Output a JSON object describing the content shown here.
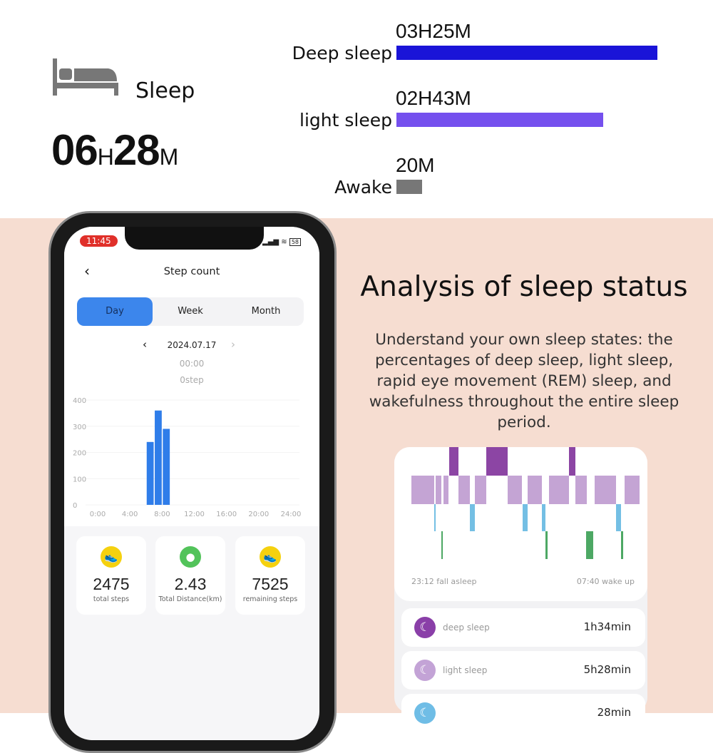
{
  "summary": {
    "icon": "bed-icon",
    "title": "Sleep",
    "hours": "06",
    "h_unit": "H",
    "minutes": "28",
    "m_unit": "M"
  },
  "stages": [
    {
      "label": "Deep sleep",
      "duration": "03H25M",
      "fraction": 0.53,
      "color": "#1a14d8"
    },
    {
      "label": "light sleep",
      "duration": "02H43M",
      "fraction": 0.42,
      "color": "#7550ee"
    },
    {
      "label": "Awake",
      "duration": "20M",
      "fraction": 0.052,
      "color": "#777777"
    }
  ],
  "phone": {
    "time": "11:45",
    "battery": "58",
    "title": "Step count",
    "tabs": [
      "Day",
      "Week",
      "Month"
    ],
    "active_tab": "Day",
    "date": "2024.07.17",
    "sel_time": "00:00",
    "sel_steps": "0step",
    "chart_data": {
      "type": "bar",
      "x_ticks": [
        "0:00",
        "4:00",
        "8:00",
        "12:00",
        "16:00",
        "20:00",
        "24:00"
      ],
      "y_ticks": [
        "400",
        "300",
        "200",
        "100",
        "0"
      ],
      "ylim": [
        0,
        400
      ],
      "bars": [
        {
          "hour": 6,
          "value": 240
        },
        {
          "hour": 7,
          "value": 360
        },
        {
          "hour": 8,
          "value": 290
        }
      ],
      "color": "#2f7de9"
    },
    "stats": [
      {
        "value": "2475",
        "label": "total steps",
        "icon": "shoe-icon",
        "color": "#f5d10f"
      },
      {
        "value": "2.43",
        "label": "Total Distance(km)",
        "icon": "location-pin-icon",
        "color": "#52c35a"
      },
      {
        "value": "7525",
        "label": "remaining steps",
        "icon": "shoe-icon",
        "color": "#f5d10f"
      }
    ]
  },
  "analysis": {
    "title": "Analysis of sleep status",
    "body": "Understand your own sleep states: the percentages of deep sleep, light sleep, rapid eye movement (REM) sleep, and wakefulness throughout the entire sleep period."
  },
  "sleep_card": {
    "start": "23:12 fall asleep",
    "end": "07:40 wake up",
    "rows": [
      {
        "label": "deep sleep",
        "value": "1h34min",
        "color": "#8a3fa8"
      },
      {
        "label": "light sleep",
        "value": "5h28min",
        "color": "#c3a3d6"
      },
      {
        "label": "",
        "value": "28min",
        "color": "#6fbde6"
      }
    ]
  }
}
